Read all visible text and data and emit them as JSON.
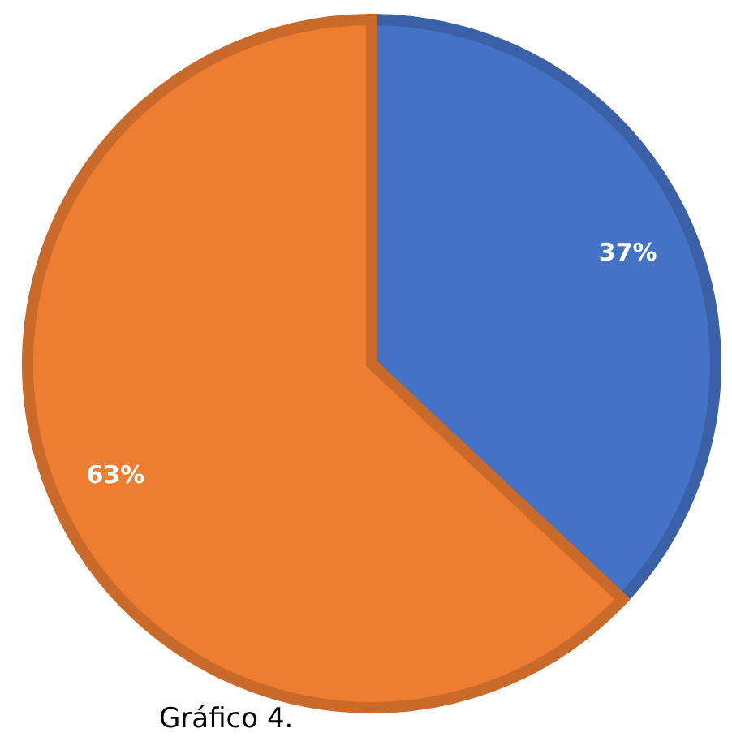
{
  "chart_data": {
    "type": "pie",
    "categories": [
      null,
      null
    ],
    "values": [
      37,
      63
    ],
    "colors": [
      "#4472c4",
      "#ed7d31"
    ],
    "value_labels": [
      "37%",
      "63%"
    ],
    "annotations": [
      "Gráfico 4."
    ]
  }
}
